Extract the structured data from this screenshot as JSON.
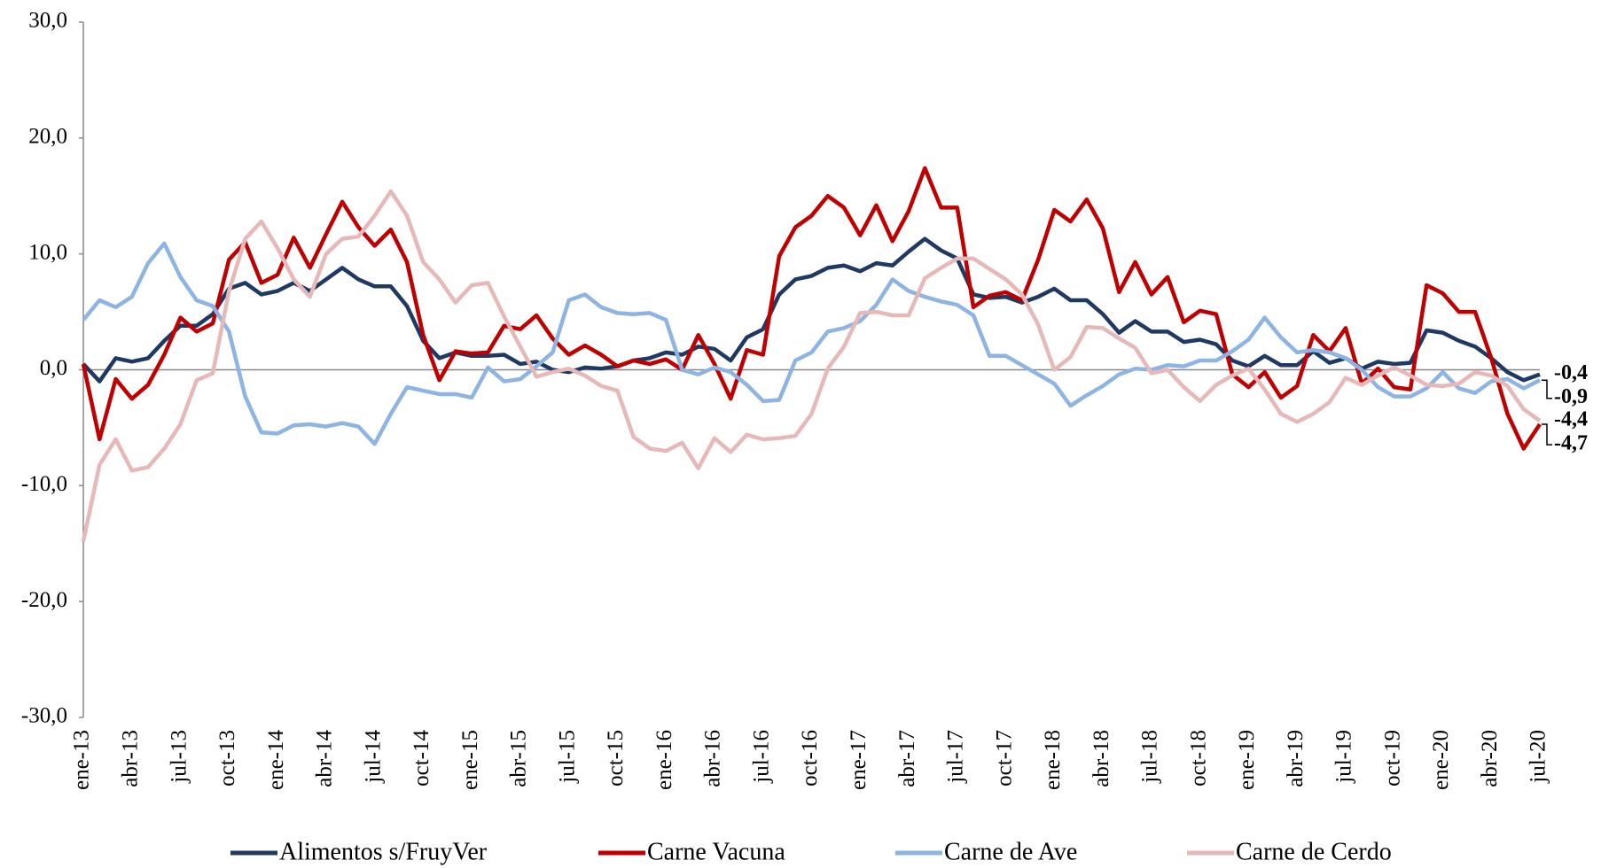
{
  "chart_data": {
    "type": "line",
    "categories": [
      "ene-13",
      null,
      null,
      "abr-13",
      null,
      null,
      "jul-13",
      null,
      null,
      "oct-13",
      null,
      null,
      "ene-14",
      null,
      null,
      "abr-14",
      null,
      null,
      "jul-14",
      null,
      null,
      "oct-14",
      null,
      null,
      "ene-15",
      null,
      null,
      "abr-15",
      null,
      null,
      "jul-15",
      null,
      null,
      "oct-15",
      null,
      null,
      "ene-16",
      null,
      null,
      "abr-16",
      null,
      null,
      "jul-16",
      null,
      null,
      "oct-16",
      null,
      null,
      "ene-17",
      null,
      null,
      "abr-17",
      null,
      null,
      "jul-17",
      null,
      null,
      "oct-17",
      null,
      null,
      "ene-18",
      null,
      null,
      "abr-18",
      null,
      null,
      "jul-18",
      null,
      null,
      "oct-18",
      null,
      null,
      "ene-19",
      null,
      null,
      "abr-19",
      null,
      null,
      "jul-19",
      null,
      null,
      "oct-19",
      null,
      null,
      "ene-20",
      null,
      null,
      "abr-20",
      null,
      null,
      "jul-20"
    ],
    "ylim": [
      -30,
      30
    ],
    "yticks": [
      {
        "value": -30,
        "label": "-30,0"
      },
      {
        "value": -20,
        "label": "-20,0"
      },
      {
        "value": -10,
        "label": "-10,0"
      },
      {
        "value": 0,
        "label": "0,0"
      },
      {
        "value": 10,
        "label": "10,0"
      },
      {
        "value": 20,
        "label": "20,0"
      },
      {
        "value": 30,
        "label": "30,0"
      }
    ],
    "grid": false,
    "series": [
      {
        "name": "Alimentos s/FruyVer",
        "color": "#1f3864",
        "values": [
          0.5,
          -1,
          1,
          0.7,
          1,
          2.5,
          3.8,
          3.8,
          4.8,
          7,
          7.5,
          6.5,
          6.8,
          7.5,
          6.8,
          7.8,
          8.8,
          7.8,
          7.2,
          7.2,
          5.5,
          2.5,
          1,
          1.5,
          1.2,
          1.2,
          1.3,
          0.5,
          0.7,
          0,
          -0.2,
          0.2,
          0.1,
          0.3,
          0.8,
          1,
          1.5,
          1.3,
          2,
          1.8,
          0.8,
          2.8,
          3.5,
          6.5,
          7.8,
          8.1,
          8.8,
          9,
          8.5,
          9.2,
          9,
          10.2,
          11.3,
          10.3,
          9.6,
          6.5,
          6.2,
          6.3,
          5.8,
          6.3,
          7,
          6,
          6,
          4.8,
          3.2,
          4.2,
          3.3,
          3.3,
          2.4,
          2.6,
          2.2,
          0.8,
          0.3,
          1.2,
          0.4,
          0.4,
          1.6,
          0.6,
          1,
          0.1,
          0.7,
          0.5,
          0.6,
          3.4,
          3.2,
          2.5,
          2,
          1,
          -0.2,
          -0.9,
          -0.4
        ],
        "value_labels": [
          null,
          null,
          null,
          null,
          null,
          null,
          null,
          null,
          null,
          null,
          null,
          null,
          null,
          null,
          null,
          null,
          null,
          null,
          null,
          null,
          null,
          null,
          null,
          null,
          null,
          null,
          null,
          null,
          null,
          null,
          null,
          null,
          null,
          null,
          null,
          null,
          null,
          null,
          null,
          null,
          null,
          null,
          null,
          null,
          null,
          null,
          null,
          null,
          null,
          null,
          null,
          null,
          null,
          null,
          null,
          null,
          null,
          null,
          null,
          null,
          null,
          null,
          null,
          null,
          null,
          null,
          null,
          null,
          null,
          null,
          null,
          null,
          null,
          null,
          null,
          null,
          null,
          null,
          null,
          null,
          null,
          null,
          null,
          null,
          null,
          null,
          null,
          null,
          null,
          null,
          "-0,4"
        ]
      },
      {
        "name": "Carne Vacuna",
        "color": "#c00000",
        "values": [
          0.5,
          -6,
          -0.8,
          -2.5,
          -1.3,
          1.3,
          4.5,
          3.3,
          4,
          9.5,
          11,
          7.5,
          8.2,
          11.4,
          8.8,
          11.7,
          14.5,
          12.3,
          10.7,
          12.1,
          9.3,
          3,
          -0.9,
          1.6,
          1.4,
          1.5,
          3.8,
          3.5,
          4.7,
          2.7,
          1.3,
          2.1,
          1.3,
          0.3,
          0.8,
          0.5,
          0.9,
          0,
          3,
          0.5,
          -2.5,
          1.7,
          1.3,
          9.8,
          12.3,
          13.3,
          15,
          14,
          11.6,
          14.2,
          11.1,
          13.7,
          17.4,
          14,
          14,
          5.4,
          6.4,
          6.7,
          6,
          9.5,
          13.8,
          12.8,
          14.7,
          12.2,
          6.7,
          9.3,
          6.5,
          8,
          4.1,
          5.1,
          4.8,
          -0.4,
          -1.5,
          -0.2,
          -2.4,
          -1.4,
          3,
          1.6,
          3.6,
          -1.2,
          0.1,
          -1.5,
          -1.7,
          7.3,
          6.6,
          5,
          5,
          1,
          -3.8,
          -6.8,
          -4.7
        ],
        "value_labels": [
          null,
          null,
          null,
          null,
          null,
          null,
          null,
          null,
          null,
          null,
          null,
          null,
          null,
          null,
          null,
          null,
          null,
          null,
          null,
          null,
          null,
          null,
          null,
          null,
          null,
          null,
          null,
          null,
          null,
          null,
          null,
          null,
          null,
          null,
          null,
          null,
          null,
          null,
          null,
          null,
          null,
          null,
          null,
          null,
          null,
          null,
          null,
          null,
          null,
          null,
          null,
          null,
          null,
          null,
          null,
          null,
          null,
          null,
          null,
          null,
          null,
          null,
          null,
          null,
          null,
          null,
          null,
          null,
          null,
          null,
          null,
          null,
          null,
          null,
          null,
          null,
          null,
          null,
          null,
          null,
          null,
          null,
          null,
          null,
          null,
          null,
          null,
          null,
          null,
          null,
          "-4,7"
        ]
      },
      {
        "name": "Carne de Ave",
        "color": "#8eb4e3",
        "values": [
          4.3,
          6,
          5.4,
          6.3,
          9.2,
          10.9,
          8,
          6,
          5.5,
          3.3,
          -2.3,
          -5.4,
          -5.5,
          -4.8,
          -4.7,
          -4.9,
          -4.6,
          -4.9,
          -6.4,
          -3.8,
          -1.5,
          -1.8,
          -2.1,
          -2.1,
          -2.4,
          0.2,
          -1,
          -0.8,
          0.3,
          1.5,
          6,
          6.5,
          5.4,
          4.9,
          4.8,
          4.9,
          4.3,
          0,
          -0.4,
          0.2,
          -0.2,
          -1.3,
          -2.7,
          -2.6,
          0.8,
          1.5,
          3.3,
          3.6,
          4.2,
          5.6,
          7.8,
          6.8,
          6.3,
          5.9,
          5.6,
          4.7,
          1.2,
          1.2,
          0.4,
          -0.4,
          -1.2,
          -3.1,
          -2.2,
          -1.4,
          -0.4,
          0.1,
          0,
          0.4,
          0.3,
          0.8,
          0.8,
          1.6,
          2.6,
          4.5,
          2.8,
          1.5,
          1.7,
          1.5,
          1,
          0,
          -1.5,
          -2.3,
          -2.3,
          -1.6,
          -0.2,
          -1.6,
          -2,
          -1,
          -0.8,
          -1.6,
          -0.9
        ],
        "value_labels": [
          null,
          null,
          null,
          null,
          null,
          null,
          null,
          null,
          null,
          null,
          null,
          null,
          null,
          null,
          null,
          null,
          null,
          null,
          null,
          null,
          null,
          null,
          null,
          null,
          null,
          null,
          null,
          null,
          null,
          null,
          null,
          null,
          null,
          null,
          null,
          null,
          null,
          null,
          null,
          null,
          null,
          null,
          null,
          null,
          null,
          null,
          null,
          null,
          null,
          null,
          null,
          null,
          null,
          null,
          null,
          null,
          null,
          null,
          null,
          null,
          null,
          null,
          null,
          null,
          null,
          null,
          null,
          null,
          null,
          null,
          null,
          null,
          null,
          null,
          null,
          null,
          null,
          null,
          null,
          null,
          null,
          null,
          null,
          null,
          null,
          null,
          null,
          null,
          null,
          null,
          "-0,9"
        ]
      },
      {
        "name": "Carne de Cerdo",
        "color": "#e6b9b8",
        "values": [
          -14.8,
          -8.2,
          -6,
          -8.7,
          -8.4,
          -6.8,
          -4.7,
          -0.9,
          -0.3,
          6.8,
          11.3,
          12.8,
          10.5,
          7.8,
          6.3,
          10,
          11.3,
          11.5,
          13.3,
          15.4,
          13.3,
          9.3,
          7.8,
          5.8,
          7.3,
          7.5,
          4.6,
          2,
          -0.6,
          -0.2,
          0.1,
          -0.5,
          -1.4,
          -1.8,
          -5.8,
          -6.8,
          -7,
          -6.3,
          -8.5,
          -5.9,
          -7.1,
          -5.6,
          -6,
          -5.9,
          -5.7,
          -3.8,
          0.1,
          2,
          4.9,
          5,
          4.7,
          4.7,
          7.9,
          8.8,
          9.6,
          9.6,
          8.7,
          7.8,
          6.5,
          3.9,
          0,
          1.1,
          3.7,
          3.6,
          2.7,
          1.9,
          -0.3,
          0,
          -1.5,
          -2.7,
          -1.3,
          -0.5,
          0.1,
          -1.7,
          -3.8,
          -4.5,
          -3.8,
          -2.8,
          -0.7,
          -1.3,
          -0.5,
          0.2,
          -0.5,
          -1.3,
          -1.4,
          -1.2,
          -0.2,
          -0.5,
          -1.4,
          -3.4,
          -4.4
        ],
        "value_labels": [
          null,
          null,
          null,
          null,
          null,
          null,
          null,
          null,
          null,
          null,
          null,
          null,
          null,
          null,
          null,
          null,
          null,
          null,
          null,
          null,
          null,
          null,
          null,
          null,
          null,
          null,
          null,
          null,
          null,
          null,
          null,
          null,
          null,
          null,
          null,
          null,
          null,
          null,
          null,
          null,
          null,
          null,
          null,
          null,
          null,
          null,
          null,
          null,
          null,
          null,
          null,
          null,
          null,
          null,
          null,
          null,
          null,
          null,
          null,
          null,
          null,
          null,
          null,
          null,
          null,
          null,
          null,
          null,
          null,
          null,
          null,
          null,
          null,
          null,
          null,
          null,
          null,
          null,
          null,
          null,
          null,
          null,
          null,
          null,
          null,
          null,
          null,
          null,
          null,
          null,
          "-4,4"
        ]
      }
    ]
  }
}
